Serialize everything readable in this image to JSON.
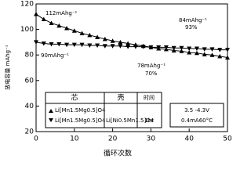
{
  "chart_data": {
    "type": "line",
    "x_label": "循环次数",
    "y_label": "放电容量 mAhg⁻¹",
    "x": [
      0,
      2,
      4,
      6,
      8,
      10,
      12,
      14,
      16,
      18,
      20,
      22,
      24,
      26,
      28,
      30,
      32,
      34,
      36,
      38,
      40,
      42,
      44,
      46,
      48,
      50
    ],
    "series": [
      {
        "name": "Li[Mn1.5Mg0.5]O4",
        "marker": "triangle-up",
        "color": "#000000",
        "values": [
          112,
          108,
          105,
          103,
          101,
          99,
          97,
          95.5,
          94,
          92.5,
          91,
          90,
          89,
          88,
          87,
          86,
          85,
          84.5,
          83.5,
          83,
          82,
          81.5,
          80.5,
          80,
          79,
          78
        ]
      },
      {
        "name": "Li[Mn1.5Mg0.5]O4",
        "marker": "triangle-down",
        "color": "#000000",
        "values": [
          90,
          89,
          88.5,
          88.5,
          88,
          88,
          88,
          87.5,
          87.5,
          87,
          87,
          87,
          86.5,
          86.5,
          86.5,
          86,
          86,
          86,
          85.5,
          85.5,
          85,
          85,
          84.5,
          84.5,
          84,
          84
        ]
      }
    ],
    "xlim": [
      0,
      50
    ],
    "xticks": [
      0,
      10,
      20,
      30,
      40,
      50
    ],
    "ylim": [
      20,
      120
    ],
    "yticks": [
      20,
      40,
      60,
      80,
      100,
      120
    ],
    "annotations": [
      "112mAhg⁻¹",
      "90mAhg⁻¹",
      "84mAhg⁻¹",
      "93%",
      "78mAhg⁻¹",
      "70%"
    ],
    "legend_table": {
      "headers": [
        "芯",
        "壳",
        "时间"
      ],
      "shell": "Li[Ni0.5Mn1.5]O4",
      "time": "1hr"
    },
    "conditions": [
      "3.5 -4.3V",
      "0.4mA60°C"
    ]
  }
}
